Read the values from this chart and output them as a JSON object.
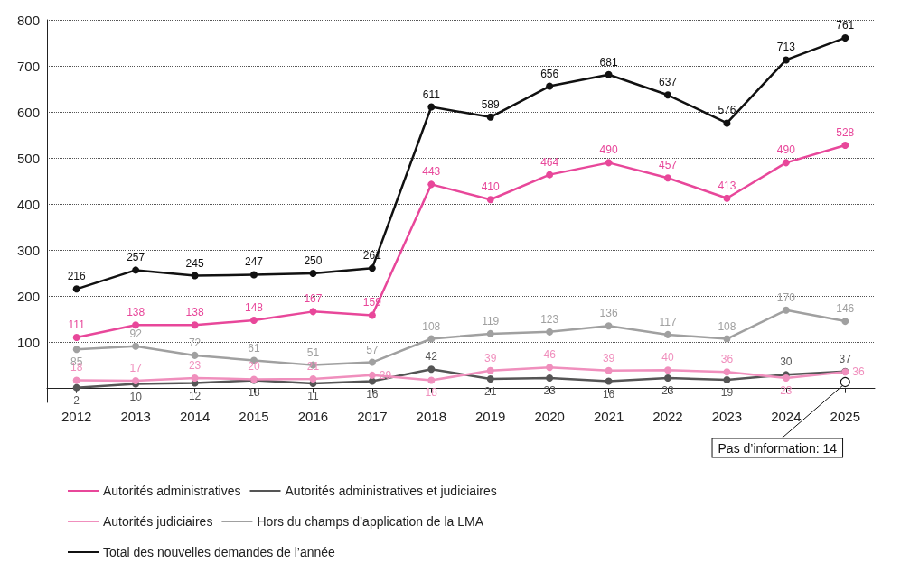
{
  "chart_data": {
    "type": "line",
    "categories": [
      "2012",
      "2013",
      "2014",
      "2015",
      "2016",
      "2017",
      "2018",
      "2019",
      "2020",
      "2021",
      "2022",
      "2023",
      "2024",
      "2025"
    ],
    "series": [
      {
        "name": "Autorités administratives",
        "color": "#e8479a",
        "values": [
          111,
          138,
          138,
          148,
          167,
          159,
          443,
          410,
          464,
          490,
          457,
          413,
          490,
          528
        ]
      },
      {
        "name": "Autorités administratives et judiciaires",
        "color": "#555555",
        "values": [
          2,
          10,
          12,
          18,
          11,
          16,
          42,
          21,
          23,
          16,
          23,
          19,
          30,
          37
        ]
      },
      {
        "name": "Autorités judiciaires",
        "color": "#f08fbd",
        "values": [
          18,
          17,
          23,
          20,
          21,
          29,
          18,
          39,
          46,
          39,
          40,
          36,
          23,
          36
        ]
      },
      {
        "name": "Hors du champs d’application de la LMA",
        "color": "#a0a0a0",
        "values": [
          85,
          92,
          72,
          61,
          51,
          57,
          108,
          119,
          123,
          136,
          117,
          108,
          170,
          146
        ]
      },
      {
        "name": "Total des nouvelles demandes de l’année",
        "color": "#111111",
        "values": [
          216,
          257,
          245,
          247,
          250,
          261,
          611,
          589,
          656,
          681,
          637,
          576,
          713,
          761
        ]
      }
    ],
    "ylim": [
      -30,
      800
    ],
    "yticks": [
      100,
      200,
      300,
      400,
      500,
      600,
      700,
      800
    ],
    "grid": "y",
    "legend": "bottom",
    "marker": "circle",
    "line_style": "solid",
    "data_labels": true,
    "annotations": [
      {
        "text": "Pas d’information: 14",
        "x": "2025",
        "y": 14
      }
    ]
  }
}
